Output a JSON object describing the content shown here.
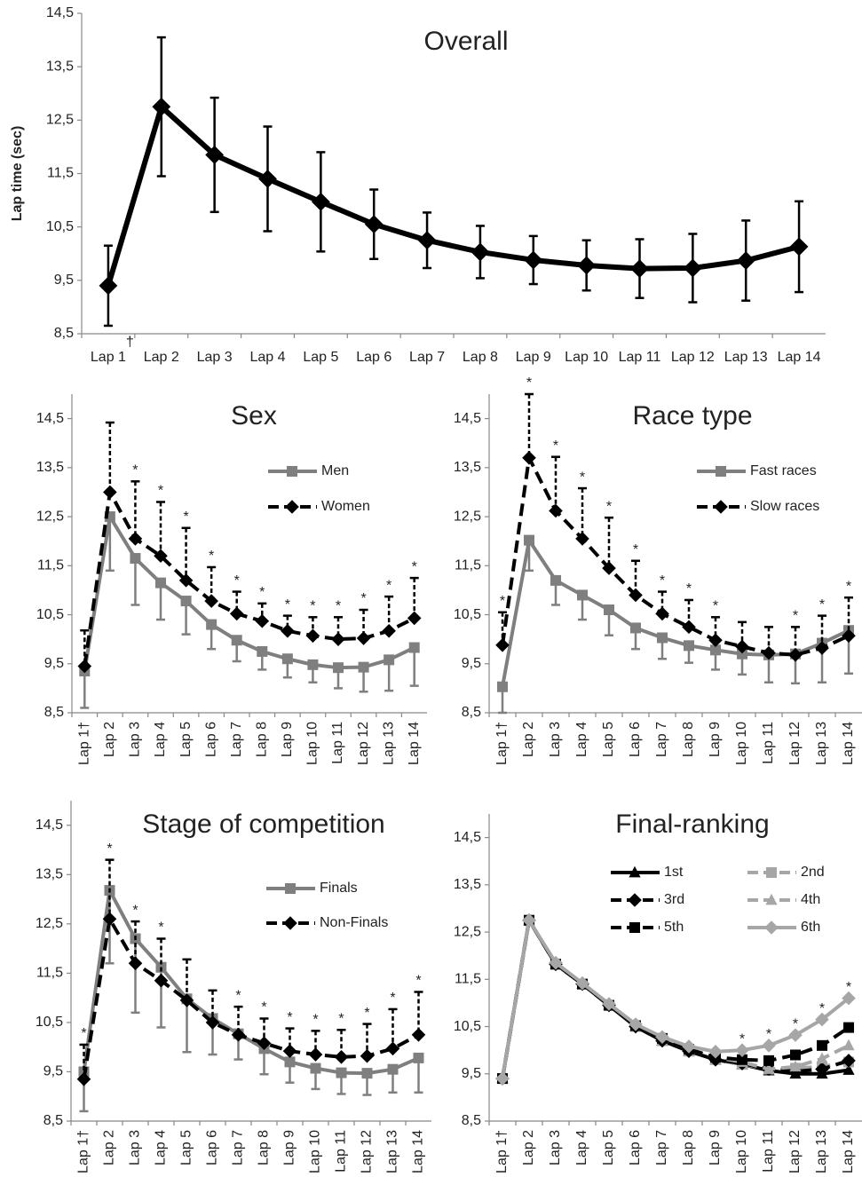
{
  "chart_data": [
    {
      "type": "line",
      "title": "Overall",
      "y_label": "Lap time (sec)",
      "footnote_mark": "†",
      "categories": [
        "Lap 1",
        "Lap 2",
        "Lap 3",
        "Lap 4",
        "Lap 5",
        "Lap 6",
        "Lap 7",
        "Lap 8",
        "Lap 9",
        "Lap 10",
        "Lap 11",
        "Lap 12",
        "Lap 13",
        "Lap 14"
      ],
      "ylim": [
        8.5,
        14.5
      ],
      "yticks": [
        {
          "value": 8.5,
          "label": "8,5"
        },
        {
          "value": 9.5,
          "label": "9,5"
        },
        {
          "value": 10.5,
          "label": "10,5"
        },
        {
          "value": 11.5,
          "label": "11,5"
        },
        {
          "value": 12.5,
          "label": "12,5"
        },
        {
          "value": 13.5,
          "label": "13,5"
        },
        {
          "value": 14.5,
          "label": "14,5"
        }
      ],
      "series": [
        {
          "color": "#000000",
          "marker": "diamond",
          "dash": false,
          "error_direction": "both",
          "values": [
            9.4,
            12.75,
            11.85,
            11.4,
            10.97,
            10.55,
            10.25,
            10.03,
            9.88,
            9.78,
            9.72,
            9.73,
            9.87,
            10.13
          ],
          "errors": [
            0.75,
            1.3,
            1.07,
            0.98,
            0.93,
            0.65,
            0.52,
            0.49,
            0.45,
            0.47,
            0.55,
            0.64,
            0.75,
            0.85
          ]
        }
      ]
    },
    {
      "type": "line",
      "title": "Sex",
      "categories": [
        "Lap 1†",
        "Lap 2",
        "Lap 3",
        "Lap 4",
        "Lap 5",
        "Lap 6",
        "Lap 7",
        "Lap 8",
        "Lap 9",
        "Lap 10",
        "Lap 11",
        "Lap 12",
        "Lap 13",
        "Lap 14"
      ],
      "ylim": [
        8.5,
        15
      ],
      "yticks": [
        {
          "value": 8.5,
          "label": "8,5"
        },
        {
          "value": 9.5,
          "label": "9,5"
        },
        {
          "value": 10.5,
          "label": "10,5"
        },
        {
          "value": 11.5,
          "label": "11,5"
        },
        {
          "value": 12.5,
          "label": "12,5"
        },
        {
          "value": 13.5,
          "label": "13,5"
        },
        {
          "value": 14.5,
          "label": "14,5"
        }
      ],
      "significance": [
        null,
        null,
        "*",
        "*",
        "*",
        "*",
        "*",
        "*",
        "*",
        "*",
        "*",
        "*",
        "*",
        "*"
      ],
      "series": [
        {
          "name": "Men",
          "color": "#7f7f7f",
          "marker": "square",
          "dash": false,
          "error_direction": "down",
          "values": [
            9.35,
            12.5,
            11.65,
            11.15,
            10.78,
            10.3,
            9.98,
            9.75,
            9.6,
            9.48,
            9.42,
            9.43,
            9.58,
            9.83
          ],
          "errors": [
            0.75,
            1.1,
            0.95,
            0.75,
            0.68,
            0.5,
            0.43,
            0.37,
            0.38,
            0.36,
            0.42,
            0.5,
            0.63,
            0.78
          ]
        },
        {
          "name": "Women",
          "color": "#000000",
          "marker": "diamond",
          "dash": true,
          "error_direction": "up",
          "values": [
            9.45,
            13.0,
            12.05,
            11.7,
            11.2,
            10.78,
            10.52,
            10.37,
            10.17,
            10.07,
            10.0,
            10.02,
            10.17,
            10.43
          ],
          "errors": [
            0.73,
            1.42,
            1.17,
            1.1,
            1.07,
            0.69,
            0.45,
            0.36,
            0.31,
            0.38,
            0.45,
            0.58,
            0.7,
            0.82
          ]
        }
      ]
    },
    {
      "type": "line",
      "title": "Race type",
      "categories": [
        "Lap 1†",
        "Lap 2",
        "Lap 3",
        "Lap 4",
        "Lap 5",
        "Lap 6",
        "Lap 7",
        "Lap 8",
        "Lap 9",
        "Lap 10",
        "Lap 11",
        "Lap 12",
        "Lap 13",
        "Lap 14"
      ],
      "ylim": [
        8.5,
        15
      ],
      "yticks": [
        {
          "value": 8.5,
          "label": "8,5"
        },
        {
          "value": 9.5,
          "label": "9,5"
        },
        {
          "value": 10.5,
          "label": "10,5"
        },
        {
          "value": 11.5,
          "label": "11,5"
        },
        {
          "value": 12.5,
          "label": "12,5"
        },
        {
          "value": 13.5,
          "label": "13,5"
        },
        {
          "value": 14.5,
          "label": "14,5"
        }
      ],
      "significance": [
        "*",
        "*",
        "*",
        "*",
        "*",
        "*",
        "*",
        "*",
        "*",
        null,
        null,
        "*",
        "*",
        "*"
      ],
      "series": [
        {
          "name": "Fast races",
          "color": "#7f7f7f",
          "marker": "square",
          "dash": false,
          "error_direction": "down",
          "values": [
            9.03,
            12.02,
            11.2,
            10.9,
            10.6,
            10.23,
            10.03,
            9.87,
            9.78,
            9.7,
            9.68,
            9.7,
            9.92,
            10.18
          ],
          "errors": [
            0.53,
            0.62,
            0.5,
            0.5,
            0.52,
            0.43,
            0.43,
            0.35,
            0.4,
            0.42,
            0.56,
            0.6,
            0.8,
            0.88
          ]
        },
        {
          "name": "Slow races",
          "color": "#000000",
          "marker": "diamond",
          "dash": true,
          "error_direction": "up",
          "values": [
            9.88,
            13.7,
            12.62,
            12.05,
            11.45,
            10.9,
            10.52,
            10.25,
            9.98,
            9.85,
            9.72,
            9.68,
            9.82,
            10.07
          ],
          "errors": [
            0.67,
            1.3,
            1.1,
            1.03,
            1.03,
            0.7,
            0.45,
            0.55,
            0.47,
            0.5,
            0.53,
            0.57,
            0.66,
            0.78
          ]
        }
      ]
    },
    {
      "type": "line",
      "title": "Stage of competition",
      "categories": [
        "Lap 1†",
        "Lap 2",
        "Lap 3",
        "Lap 4",
        "Lap 5",
        "Lap 6",
        "Lap 7",
        "Lap 8",
        "Lap 9",
        "Lap 10",
        "Lap 11",
        "Lap 12",
        "Lap 13",
        "Lap 14"
      ],
      "ylim": [
        8.5,
        15
      ],
      "yticks": [
        {
          "value": 8.5,
          "label": "8,5"
        },
        {
          "value": 9.5,
          "label": "9,5"
        },
        {
          "value": 10.5,
          "label": "10,5"
        },
        {
          "value": 11.5,
          "label": "11,5"
        },
        {
          "value": 12.5,
          "label": "12,5"
        },
        {
          "value": 13.5,
          "label": "13,5"
        },
        {
          "value": 14.5,
          "label": "14,5"
        }
      ],
      "significance": [
        "*",
        "*",
        "*",
        "*",
        null,
        null,
        "*",
        "*",
        "*",
        "*",
        "*",
        "*",
        "*",
        "*"
      ],
      "series": [
        {
          "name": "Finals",
          "color": "#7f7f7f",
          "marker": "square",
          "dash": false,
          "error_direction": "down",
          "values": [
            9.5,
            13.18,
            12.2,
            11.62,
            10.98,
            10.58,
            10.27,
            9.97,
            9.7,
            9.57,
            9.48,
            9.47,
            9.55,
            9.78
          ],
          "errors": [
            0.8,
            1.48,
            1.5,
            1.22,
            1.08,
            0.73,
            0.52,
            0.52,
            0.42,
            0.42,
            0.43,
            0.44,
            0.47,
            0.7
          ]
        },
        {
          "name": "Non-Finals",
          "color": "#000000",
          "marker": "diamond",
          "dash": true,
          "error_direction": "up",
          "values": [
            9.35,
            12.6,
            11.7,
            11.35,
            10.95,
            10.5,
            10.25,
            10.08,
            9.92,
            9.85,
            9.8,
            9.82,
            9.97,
            10.25
          ],
          "errors": [
            0.7,
            1.2,
            0.85,
            0.85,
            0.83,
            0.65,
            0.57,
            0.5,
            0.46,
            0.48,
            0.55,
            0.65,
            0.8,
            0.87
          ]
        }
      ]
    },
    {
      "type": "line",
      "title": "Final-ranking",
      "categories": [
        "Lap 1†",
        "Lap 2",
        "Lap 3",
        "Lap 4",
        "Lap 5",
        "Lap 6",
        "Lap 7",
        "Lap 8",
        "Lap 9",
        "Lap 10",
        "Lap 11",
        "Lap 12",
        "Lap 13",
        "Lap 14"
      ],
      "ylim": [
        8.5,
        15
      ],
      "yticks": [
        {
          "value": 8.5,
          "label": "8,5"
        },
        {
          "value": 9.5,
          "label": "9,5"
        },
        {
          "value": 10.5,
          "label": "10,5"
        },
        {
          "value": 11.5,
          "label": "11,5"
        },
        {
          "value": 12.5,
          "label": "12,5"
        },
        {
          "value": 13.5,
          "label": "13,5"
        },
        {
          "value": 14.5,
          "label": "14,5"
        }
      ],
      "significance": [
        null,
        null,
        null,
        null,
        null,
        null,
        null,
        null,
        null,
        "*",
        "*",
        "*",
        "*",
        "*"
      ],
      "series": [
        {
          "name": "1st",
          "color": "#000000",
          "marker": "triangle",
          "dash": false,
          "values": [
            9.4,
            12.75,
            11.82,
            11.4,
            10.95,
            10.5,
            10.2,
            9.98,
            9.8,
            9.7,
            9.57,
            9.5,
            9.5,
            9.58
          ]
        },
        {
          "name": "2nd",
          "color": "#a6a6a6",
          "marker": "square",
          "dash": true,
          "values": [
            9.4,
            12.75,
            11.82,
            11.4,
            10.95,
            10.5,
            10.2,
            9.98,
            9.8,
            9.7,
            9.6,
            9.62,
            9.65,
            9.75
          ]
        },
        {
          "name": "3rd",
          "color": "#000000",
          "marker": "diamond",
          "dash": true,
          "values": [
            9.4,
            12.75,
            11.82,
            11.4,
            10.95,
            10.5,
            10.2,
            9.98,
            9.8,
            9.72,
            9.6,
            9.55,
            9.6,
            9.78
          ]
        },
        {
          "name": "4th",
          "color": "#a6a6a6",
          "marker": "triangle",
          "dash": true,
          "values": [
            9.4,
            12.75,
            11.82,
            11.4,
            10.95,
            10.52,
            10.25,
            10.02,
            9.85,
            9.75,
            9.6,
            9.65,
            9.82,
            10.1
          ]
        },
        {
          "name": "5th",
          "color": "#000000",
          "marker": "square",
          "dash": true,
          "values": [
            9.4,
            12.75,
            11.82,
            11.4,
            10.95,
            10.52,
            10.25,
            10.02,
            9.85,
            9.8,
            9.78,
            9.9,
            10.1,
            10.48
          ]
        },
        {
          "name": "6th",
          "color": "#a6a6a6",
          "marker": "diamond",
          "dash": false,
          "values": [
            9.4,
            12.75,
            11.85,
            11.42,
            10.98,
            10.55,
            10.28,
            10.08,
            9.97,
            10.0,
            10.1,
            10.32,
            10.65,
            11.1
          ]
        }
      ]
    }
  ]
}
